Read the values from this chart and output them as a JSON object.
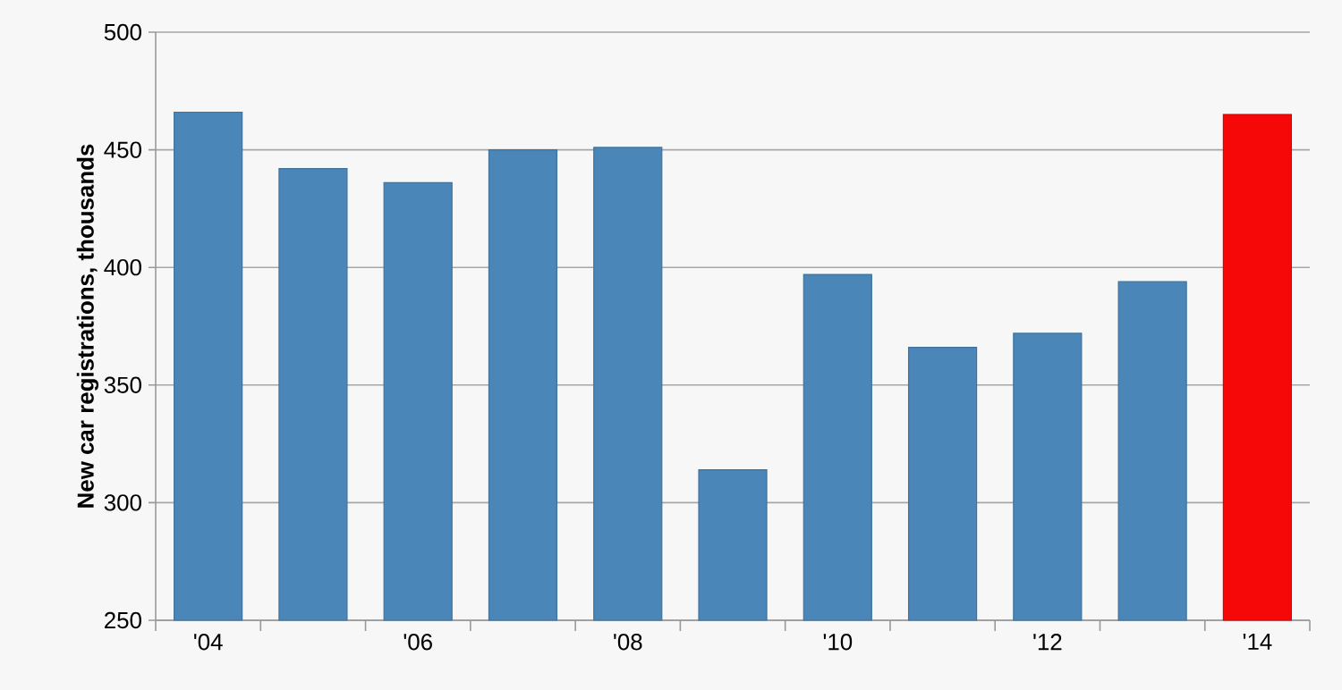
{
  "chart_data": {
    "type": "bar",
    "ylabel": "New car registrations, thousands",
    "categories": [
      "'04",
      null,
      "'06",
      null,
      "'08",
      null,
      "'10",
      null,
      "'12",
      null,
      "'14"
    ],
    "values": [
      466,
      442,
      436,
      450,
      451,
      314,
      397,
      366,
      372,
      394,
      465
    ],
    "colors": [
      "#4a86b8",
      "#4a86b8",
      "#4a86b8",
      "#4a86b8",
      "#4a86b8",
      "#4a86b8",
      "#4a86b8",
      "#4a86b8",
      "#4a86b8",
      "#4a86b8",
      "#f70808"
    ],
    "ylim": [
      250,
      500
    ],
    "yticks": [
      250,
      300,
      350,
      400,
      450,
      500
    ],
    "grid": "y"
  }
}
